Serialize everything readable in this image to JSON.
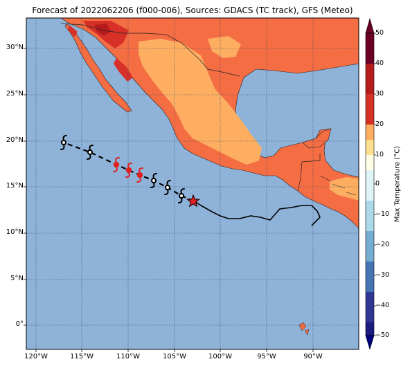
{
  "title": "Forecast of 2022062206 (f000-006), Sources: GDACS (TC track), GFS (Meteo)",
  "colorbar": {
    "label": "Max Temperature (°C)",
    "ticks": [
      "50",
      "40",
      "30",
      "20",
      "10",
      "0",
      "−10",
      "−20",
      "−30",
      "−40",
      "−50"
    ],
    "colors": [
      "#6b0024",
      "#b71c1c",
      "#d73027",
      "#f46d43",
      "#fdae61",
      "#fee090",
      "#ffffe5",
      "#e0f3f8",
      "#abd9e9",
      "#74add1",
      "#4575b4",
      "#313695",
      "#1a1a80"
    ]
  },
  "axes": {
    "lat_labels": [
      "30°N",
      "25°N",
      "20°N",
      "15°N",
      "10°N",
      "5°N",
      "0°"
    ],
    "lon_labels": [
      "120°W",
      "115°W",
      "110°W",
      "105°W",
      "100°W",
      "95°W",
      "90°W"
    ]
  },
  "map": {
    "ocean_color": "#8fb2d8",
    "land_colors": {
      "hot": "#f46d43",
      "warm": "#fdae61",
      "very_hot": "#d73027",
      "extreme": "#b71c1c"
    }
  },
  "track": {
    "current_marker_color": "#e02020",
    "forecast_symbol_color": "#e02020"
  }
}
